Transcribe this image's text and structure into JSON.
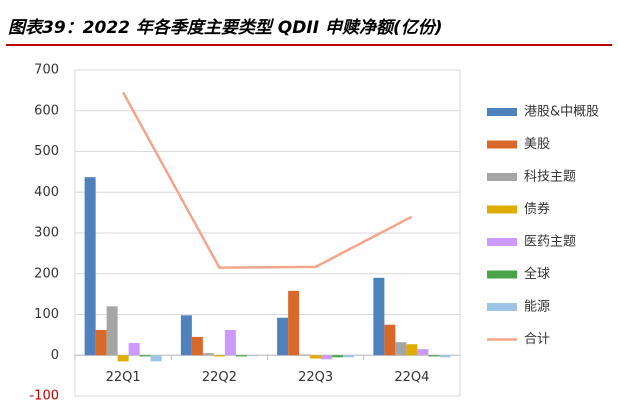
{
  "chart_data": {
    "type": "bar",
    "title": "图表39：2022 年各季度主要类型 QDII 申赎净额(亿份)",
    "categories": [
      "22Q1",
      "22Q2",
      "22Q3",
      "22Q4"
    ],
    "ylim": [
      -100,
      700
    ],
    "yticks": [
      -100,
      0,
      100,
      200,
      300,
      400,
      500,
      600,
      700
    ],
    "grid": true,
    "series": [
      {
        "name": "港股&中概股",
        "color": "#4f81bd",
        "values": [
          437,
          98,
          92,
          190
        ]
      },
      {
        "name": "美股",
        "color": "#d9692a",
        "values": [
          62,
          45,
          158,
          75
        ]
      },
      {
        "name": "科技主题",
        "color": "#a5a5a5",
        "values": [
          120,
          5,
          2,
          32
        ]
      },
      {
        "name": "债券",
        "color": "#e0ac00",
        "values": [
          -15,
          -3,
          -8,
          27
        ]
      },
      {
        "name": "医药主题",
        "color": "#cc99ff",
        "values": [
          30,
          62,
          -10,
          15
        ]
      },
      {
        "name": "全球",
        "color": "#4aa347",
        "values": [
          -3,
          -3,
          -5,
          -3
        ]
      },
      {
        "name": "能源",
        "color": "#9dc3e6",
        "values": [
          -15,
          -2,
          -5,
          -5
        ]
      },
      {
        "name": "合计",
        "color": "#f4a58a",
        "type": "line",
        "values": [
          645,
          215,
          217,
          340
        ]
      }
    ]
  }
}
